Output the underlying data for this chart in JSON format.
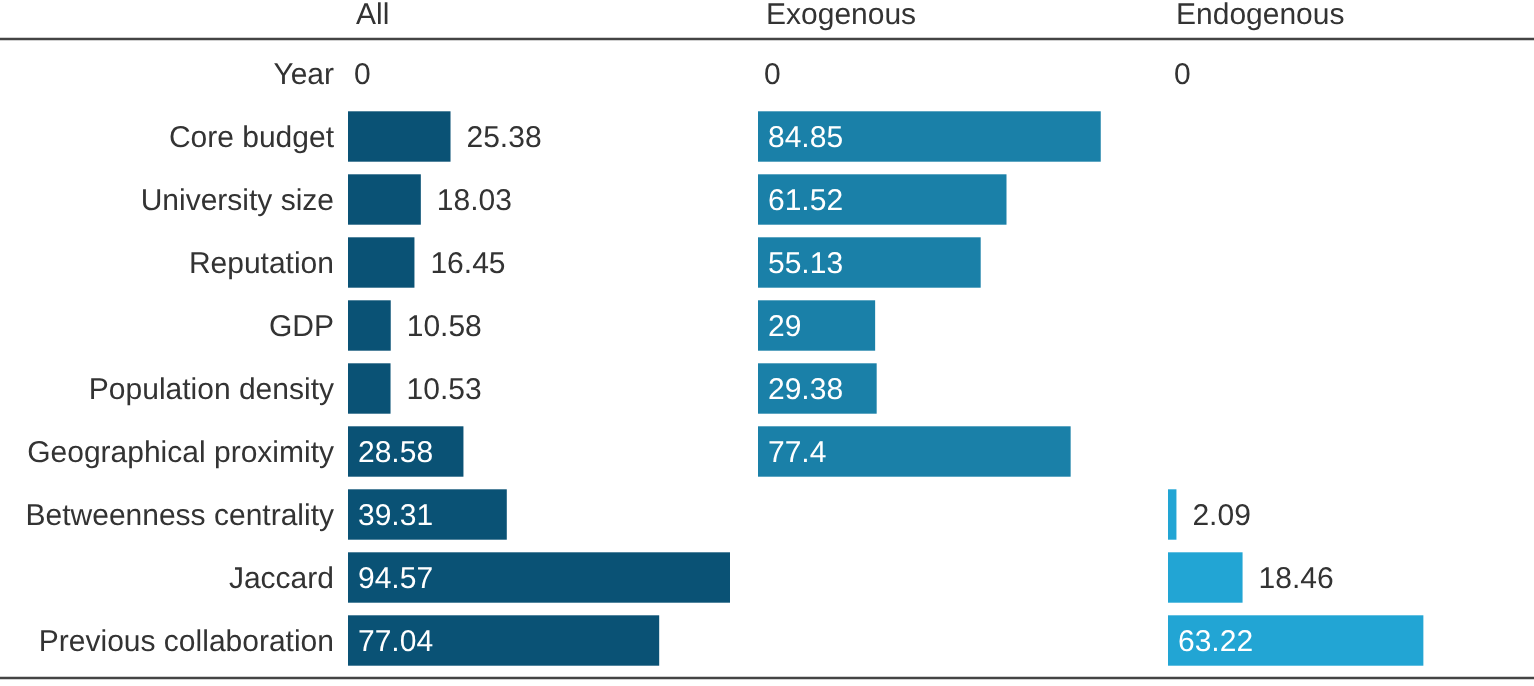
{
  "chart_data": [
    {
      "type": "bar",
      "orientation": "horizontal",
      "title": "All",
      "categories": [
        "Year",
        "Core budget",
        "University size",
        "Reputation",
        "GDP",
        "Population density",
        "Geographical proximity",
        "Betweenness centrality",
        "Jaccard",
        "Previous collaboration"
      ],
      "values": [
        0,
        25.38,
        18.03,
        16.45,
        10.58,
        10.53,
        28.58,
        39.31,
        94.57,
        77.04
      ],
      "color": "#0a5275",
      "data_labels": true,
      "tick_labels": "y"
    },
    {
      "type": "bar",
      "orientation": "horizontal",
      "title": "Exogenous",
      "categories": [
        null,
        null,
        null,
        null,
        null,
        null,
        null,
        null,
        null,
        null
      ],
      "values": [
        0,
        84.85,
        61.52,
        55.13,
        29,
        29.38,
        77.4,
        null,
        null,
        null
      ],
      "color": "#1a80a8",
      "data_labels": true,
      "tick_labels": false
    },
    {
      "type": "bar",
      "orientation": "horizontal",
      "title": "Endogenous",
      "categories": [
        null,
        null,
        null,
        null,
        null,
        null,
        null,
        null,
        null,
        null
      ],
      "values": [
        0,
        null,
        null,
        null,
        null,
        null,
        null,
        2.09,
        18.46,
        63.22
      ],
      "color": "#22a5d4",
      "data_labels": true,
      "tick_labels": false
    }
  ]
}
